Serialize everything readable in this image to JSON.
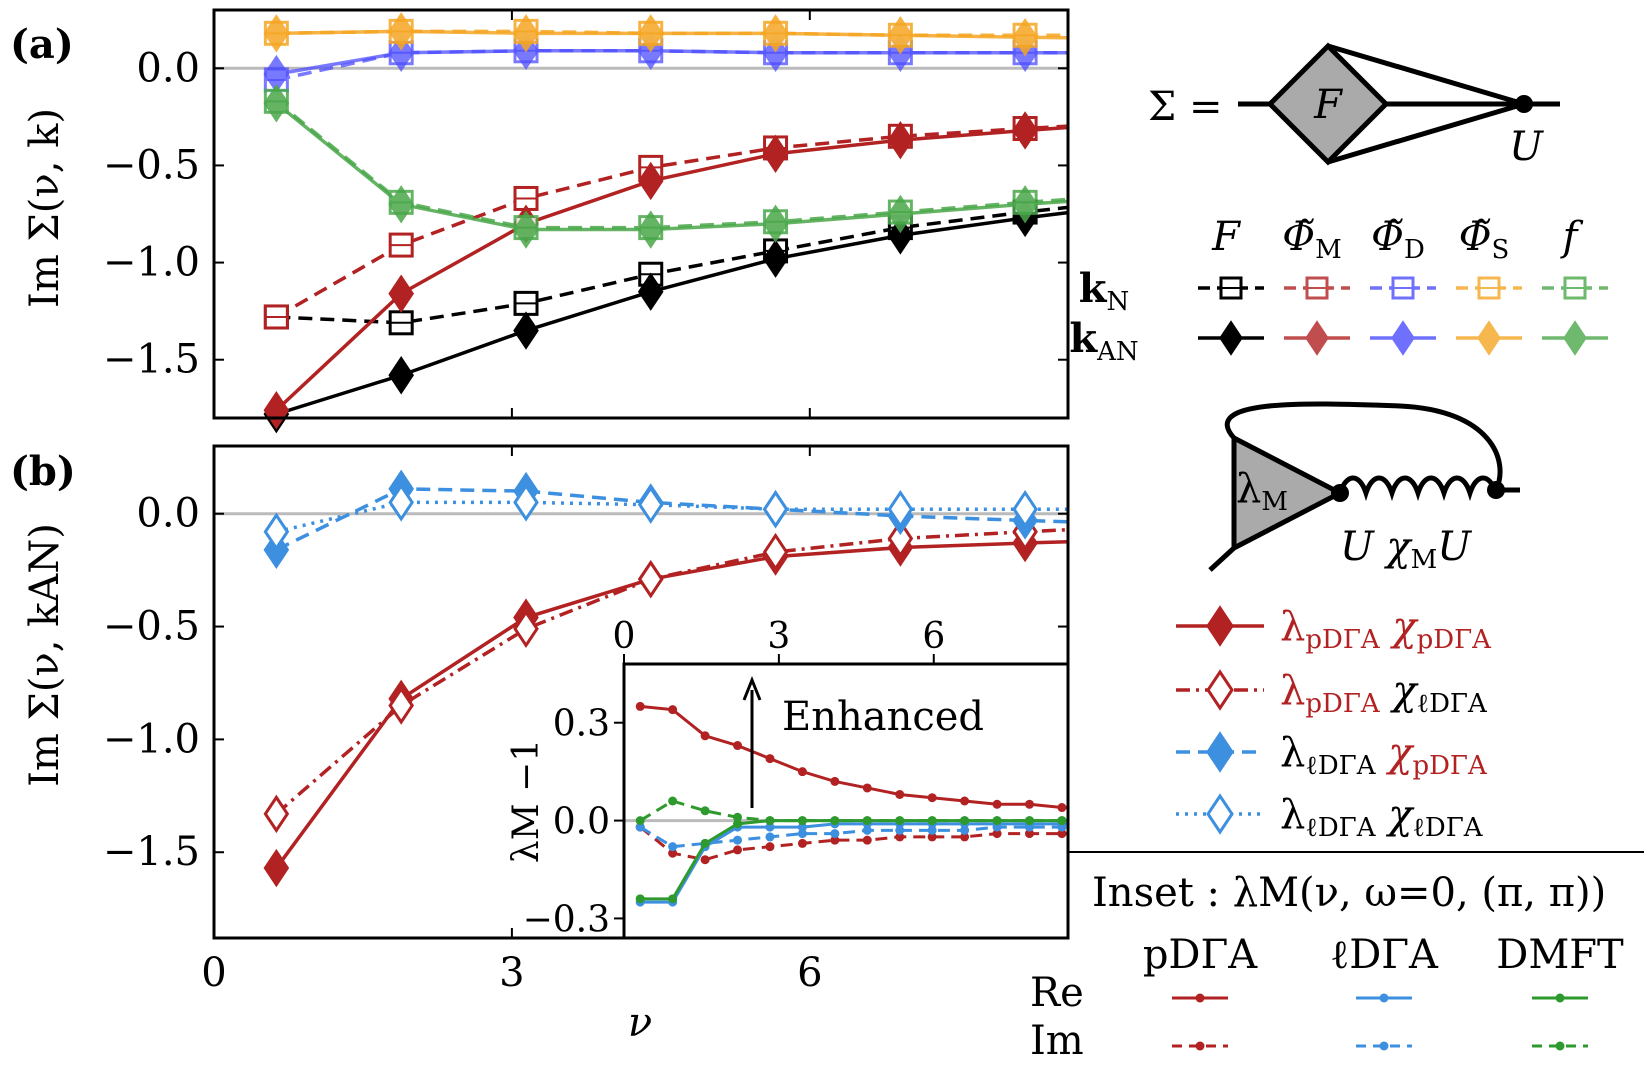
{
  "colors": {
    "black": "#000000",
    "darkred": "#b22222",
    "blue": "#4d4dff",
    "orange": "#f5a623",
    "green": "#4aa84a",
    "lightblue": "#3d8fe0",
    "dmft_green": "#2e9a2e",
    "zero_line": "#bbbbbb"
  },
  "panel_labels": {
    "a": "(a)",
    "b": "(b)"
  },
  "chart_data": [
    {
      "panel": "a",
      "type": "line",
      "ylabel": "Im Σ(ν, k)",
      "xlabel": "",
      "xlim": [
        0,
        8.6
      ],
      "ylim": [
        -1.8,
        0.3
      ],
      "xticks": [
        "0",
        "3",
        "6"
      ],
      "yticks": [
        "0.0",
        "−0.5",
        "−1.0",
        "−1.5"
      ],
      "ytick_values": [
        0.0,
        -0.5,
        -1.0,
        -1.5
      ],
      "x": [
        0.628,
        1.885,
        3.142,
        4.398,
        5.655,
        6.912,
        8.168
      ],
      "series": [
        {
          "label": "F kN",
          "color": "black",
          "dash": "dashed",
          "marker": "square",
          "values": [
            -1.28,
            -1.31,
            -1.21,
            -1.06,
            -0.94,
            -0.82,
            -0.74
          ]
        },
        {
          "label": "F kAN",
          "color": "black",
          "dash": "solid",
          "marker": "diamond",
          "values": [
            -1.78,
            -1.58,
            -1.35,
            -1.15,
            -0.98,
            -0.86,
            -0.77
          ]
        },
        {
          "label": "Φ̃M kN",
          "color": "darkred",
          "dash": "dashed",
          "marker": "square",
          "values": [
            -1.28,
            -0.91,
            -0.67,
            -0.51,
            -0.41,
            -0.35,
            -0.31
          ]
        },
        {
          "label": "Φ̃M kAN",
          "color": "darkred",
          "dash": "solid",
          "marker": "diamond",
          "values": [
            -1.76,
            -1.16,
            -0.8,
            -0.58,
            -0.44,
            -0.37,
            -0.32
          ]
        },
        {
          "label": "Φ̃D kN",
          "color": "blue",
          "dash": "dashed",
          "marker": "square",
          "values": [
            -0.06,
            0.08,
            0.09,
            0.09,
            0.08,
            0.08,
            0.08
          ]
        },
        {
          "label": "Φ̃D kAN",
          "color": "blue",
          "dash": "solid",
          "marker": "diamond",
          "values": [
            -0.03,
            0.08,
            0.09,
            0.09,
            0.08,
            0.08,
            0.08
          ]
        },
        {
          "label": "Φ̃S kN",
          "color": "orange",
          "dash": "dashed",
          "marker": "square",
          "values": [
            0.18,
            0.19,
            0.19,
            0.18,
            0.18,
            0.17,
            0.17
          ]
        },
        {
          "label": "Φ̃S kAN",
          "color": "orange",
          "dash": "solid",
          "marker": "diamond",
          "values": [
            0.18,
            0.19,
            0.18,
            0.18,
            0.18,
            0.17,
            0.16
          ]
        },
        {
          "label": "f kN",
          "color": "green",
          "dash": "dashed",
          "marker": "square",
          "values": [
            -0.17,
            -0.69,
            -0.82,
            -0.82,
            -0.79,
            -0.74,
            -0.69
          ]
        },
        {
          "label": "f kAN",
          "color": "green",
          "dash": "solid",
          "marker": "diamond",
          "values": [
            -0.18,
            -0.7,
            -0.83,
            -0.83,
            -0.8,
            -0.75,
            -0.7
          ]
        }
      ]
    },
    {
      "panel": "b",
      "type": "line",
      "ylabel": "Im Σ(ν, kAN)",
      "xlabel": "ν",
      "xlim": [
        0,
        8.6
      ],
      "ylim": [
        -1.88,
        0.3
      ],
      "xticks": [
        "0",
        "3",
        "6"
      ],
      "yticks": [
        "0.0",
        "−0.5",
        "−1.0",
        "−1.5"
      ],
      "ytick_values": [
        0.0,
        -0.5,
        -1.0,
        -1.5
      ],
      "x": [
        0.628,
        1.885,
        3.142,
        4.398,
        5.655,
        6.912,
        8.168
      ],
      "series": [
        {
          "label": "λpDΓA χpDΓA",
          "color": "darkred",
          "dash": "solid",
          "marker": "diamond_filled",
          "values": [
            -1.57,
            -0.82,
            -0.46,
            -0.29,
            -0.19,
            -0.15,
            -0.13
          ]
        },
        {
          "label": "λpDΓA χℓDΓA",
          "color": "darkred",
          "dash": "dashdot",
          "marker": "diamond_open",
          "values": [
            -1.33,
            -0.85,
            -0.51,
            -0.29,
            -0.17,
            -0.11,
            -0.08
          ]
        },
        {
          "label": "λℓDΓA χpDΓA",
          "color": "lightblue",
          "dash": "dashed",
          "marker": "diamond_filled",
          "values": [
            -0.16,
            0.11,
            0.1,
            0.05,
            0.02,
            -0.01,
            -0.03
          ]
        },
        {
          "label": "λℓDΓA χℓDΓA",
          "color": "lightblue",
          "dash": "dotted",
          "marker": "diamond_open",
          "values": [
            -0.08,
            0.05,
            0.05,
            0.04,
            0.02,
            0.02,
            0.02
          ]
        }
      ]
    },
    {
      "panel": "inset",
      "type": "line",
      "ylabel": "λM −1",
      "xlim": [
        0,
        8.6
      ],
      "ylim": [
        -0.36,
        0.48
      ],
      "xticks": [
        "0",
        "3",
        "6"
      ],
      "yticks": [
        "0.3",
        "0.0",
        "−0.3"
      ],
      "ytick_values": [
        0.3,
        0.0,
        -0.3
      ],
      "x": [
        0.314,
        0.942,
        1.571,
        2.199,
        2.827,
        3.456,
        4.084,
        4.712,
        5.341,
        5.969,
        6.597,
        7.226,
        7.854,
        8.482
      ],
      "annotation": "Enhanced",
      "series": [
        {
          "label": "pDΓA Re",
          "color": "darkred",
          "dash": "solid",
          "values": [
            0.35,
            0.34,
            0.26,
            0.23,
            0.19,
            0.15,
            0.12,
            0.1,
            0.08,
            0.07,
            0.06,
            0.05,
            0.05,
            0.04
          ]
        },
        {
          "label": "pDΓA Im",
          "color": "darkred",
          "dash": "dashed",
          "values": [
            -0.02,
            -0.1,
            -0.12,
            -0.09,
            -0.08,
            -0.07,
            -0.06,
            -0.06,
            -0.05,
            -0.05,
            -0.05,
            -0.04,
            -0.04,
            -0.04
          ]
        },
        {
          "label": "ℓDΓA Re",
          "color": "lightblue",
          "dash": "solid",
          "values": [
            -0.25,
            -0.25,
            -0.08,
            -0.02,
            -0.02,
            -0.02,
            -0.01,
            -0.01,
            -0.01,
            -0.01,
            -0.01,
            -0.01,
            -0.01,
            -0.01
          ]
        },
        {
          "label": "ℓDΓA Im",
          "color": "lightblue",
          "dash": "dashed",
          "values": [
            -0.02,
            -0.08,
            -0.07,
            -0.06,
            -0.05,
            -0.04,
            -0.04,
            -0.03,
            -0.03,
            -0.03,
            -0.03,
            -0.02,
            -0.02,
            -0.02
          ]
        },
        {
          "label": "DMFT Re",
          "color": "dmft_green",
          "dash": "solid",
          "values": [
            -0.24,
            -0.24,
            -0.07,
            -0.01,
            0.0,
            0.0,
            0.0,
            0.0,
            0.0,
            0.0,
            0.0,
            0.0,
            0.0,
            0.0
          ]
        },
        {
          "label": "DMFT Im",
          "color": "dmft_green",
          "dash": "dashed",
          "values": [
            0.0,
            0.06,
            0.03,
            0.01,
            0.0,
            0.0,
            0.0,
            0.0,
            0.0,
            0.0,
            0.0,
            0.0,
            0.0,
            0.0
          ]
        }
      ]
    }
  ],
  "diagrams": {
    "sigma": {
      "lhs": "Σ =",
      "vertex": "F",
      "bare": "U"
    },
    "lambda": {
      "vertex": "λ",
      "vertex_sub": "M",
      "bottom": "U χ",
      "bottom_sub": "M",
      "bottom_end": "U"
    }
  },
  "legend_a": {
    "columns": [
      "F",
      "Φ̃",
      "Φ̃",
      "Φ̃",
      "f"
    ],
    "column_subs": [
      "",
      "M",
      "D",
      "S",
      ""
    ],
    "rows": [
      "k",
      "k"
    ],
    "row_subs": [
      "N",
      "AN"
    ]
  },
  "legend_b": [
    {
      "lambda_sub": "pDΓA",
      "chi_sub": "pDΓA"
    },
    {
      "lambda_sub": "pDΓA",
      "chi_sub": "ℓDΓA"
    },
    {
      "lambda_sub": "ℓDΓA",
      "chi_sub": "pDΓA"
    },
    {
      "lambda_sub": "ℓDΓA",
      "chi_sub": "ℓDΓA"
    }
  ],
  "inset_legend": {
    "title": "Inset : λM(ν, ω=0, (π, π))",
    "columns": [
      "pDΓA",
      "ℓDΓA",
      "DMFT"
    ],
    "rows": [
      "Re",
      "Im"
    ]
  }
}
